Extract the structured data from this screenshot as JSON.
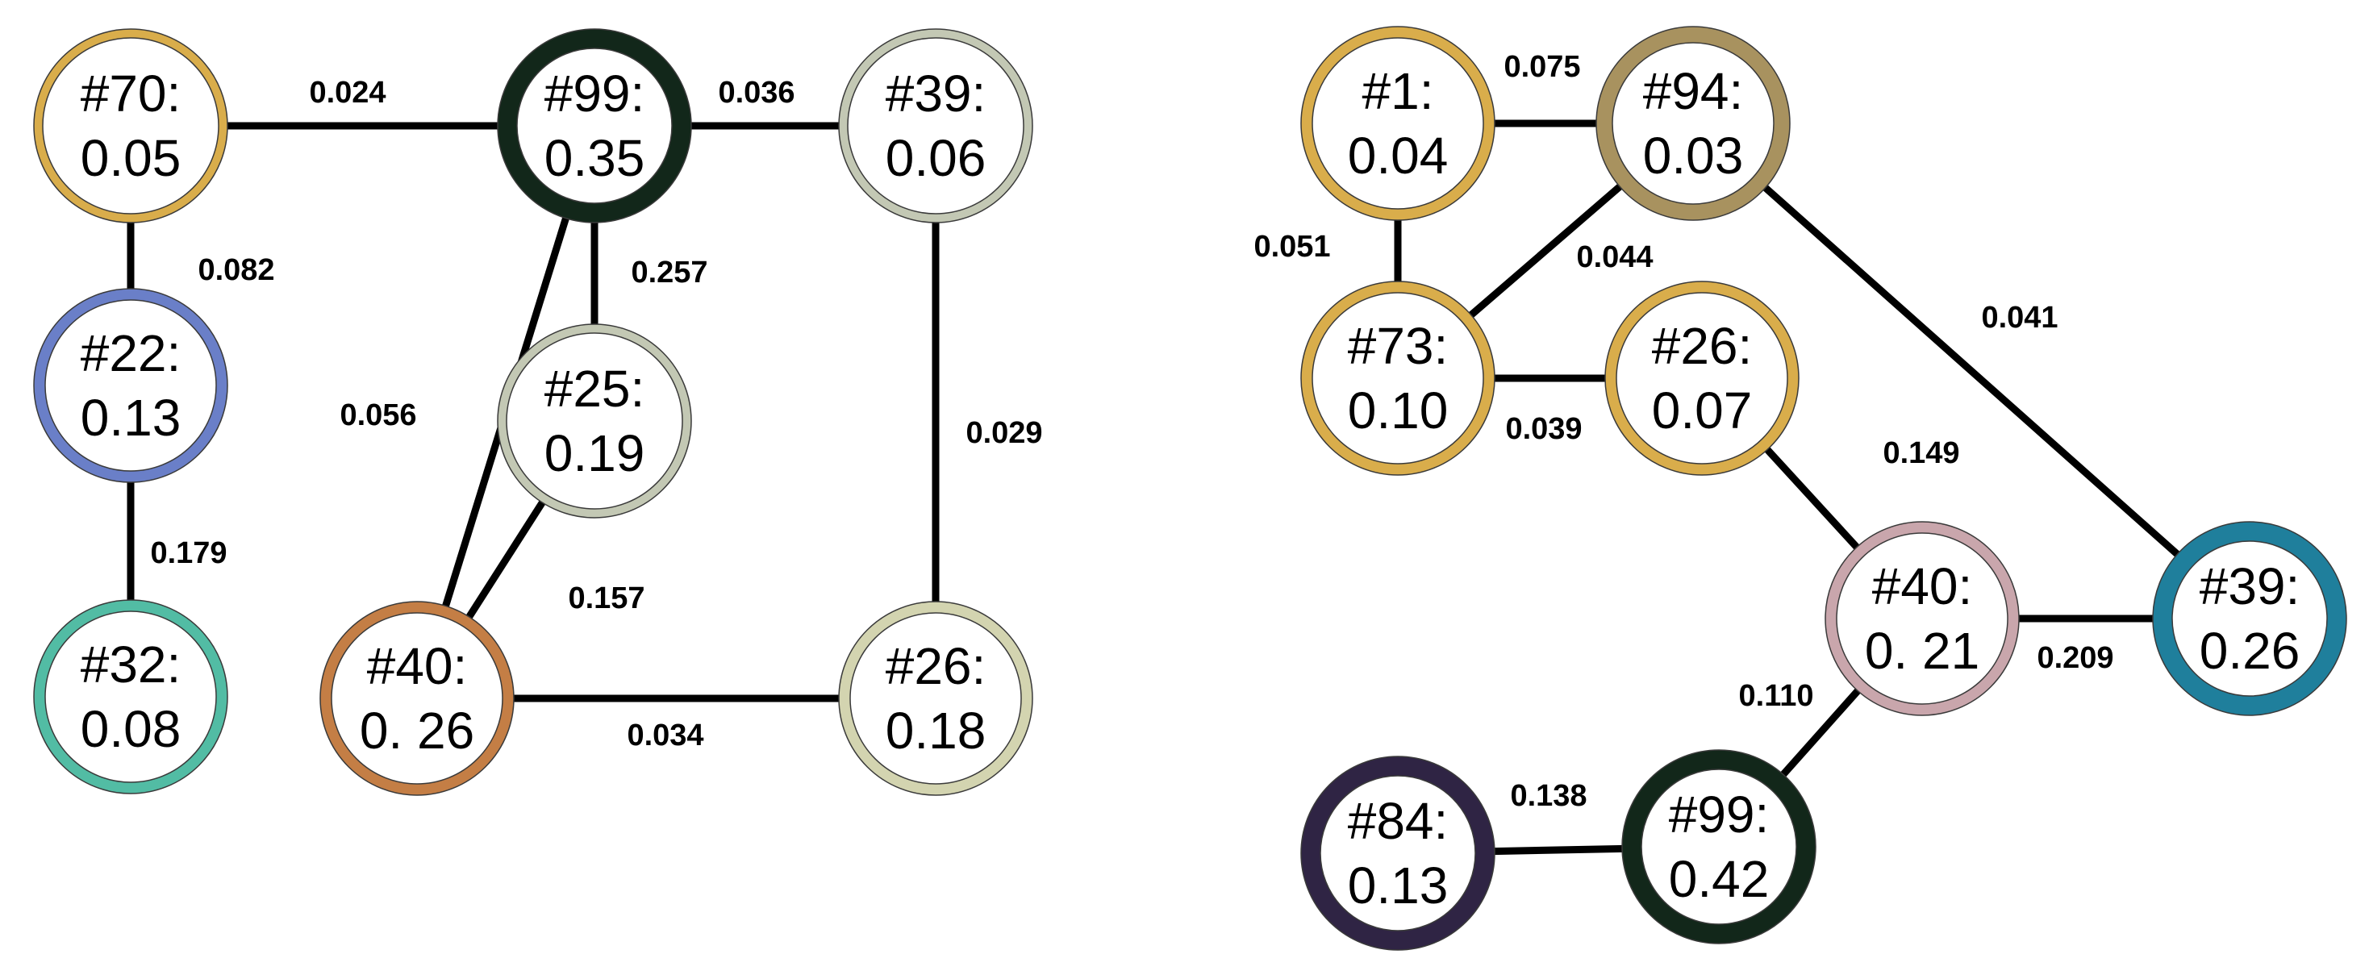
{
  "graphs": [
    {
      "nodes": [
        {
          "id": "g1n70",
          "line1": "#70:",
          "line2": "0.05",
          "color": "#d9ad4b"
        },
        {
          "id": "g1n99",
          "line1": "#99:",
          "line2": "0.35",
          "color": "#12271a"
        },
        {
          "id": "g1n39",
          "line1": "#39:",
          "line2": "0.06",
          "color": "#c3c8b4"
        },
        {
          "id": "g1n22",
          "line1": "#22:",
          "line2": "0.13",
          "color": "#6a7fc8"
        },
        {
          "id": "g1n25",
          "line1": "#25:",
          "line2": "0.19",
          "color": "#c3c8b4"
        },
        {
          "id": "g1n32",
          "line1": "#32:",
          "line2": "0.08",
          "color": "#52bca4"
        },
        {
          "id": "g1n40",
          "line1": "#40:",
          "line2": "0. 26",
          "color": "#c47e45"
        },
        {
          "id": "g1n26",
          "line1": "#26:",
          "line2": "0.18",
          "color": "#d3d4b0"
        }
      ],
      "edges": [
        {
          "from": "g1n70",
          "to": "g1n99",
          "label": "0.024"
        },
        {
          "from": "g1n99",
          "to": "g1n39",
          "label": "0.036"
        },
        {
          "from": "g1n70",
          "to": "g1n22",
          "label": "0.082"
        },
        {
          "from": "g1n99",
          "to": "g1n25",
          "label": "0.257"
        },
        {
          "from": "g1n99",
          "to": "g1n40",
          "label": "0.056"
        },
        {
          "from": "g1n39",
          "to": "g1n26",
          "label": "0.029"
        },
        {
          "from": "g1n22",
          "to": "g1n32",
          "label": "0.179"
        },
        {
          "from": "g1n25",
          "to": "g1n40",
          "label": "0.157"
        },
        {
          "from": "g1n40",
          "to": "g1n26",
          "label": "0.034"
        }
      ]
    },
    {
      "nodes": [
        {
          "id": "g2n1",
          "line1": "#1:",
          "line2": "0.04",
          "color": "#d9ad4b"
        },
        {
          "id": "g2n94",
          "line1": "#94:",
          "line2": "0.03",
          "color": "#a8925f"
        },
        {
          "id": "g2n73",
          "line1": "#73:",
          "line2": "0.10",
          "color": "#d9ad4b"
        },
        {
          "id": "g2n26",
          "line1": "#26:",
          "line2": "0.07",
          "color": "#d9ad4b"
        },
        {
          "id": "g2n40",
          "line1": "#40:",
          "line2": "0. 21",
          "color": "#c9a6ac"
        },
        {
          "id": "g2n39",
          "line1": "#39:",
          "line2": "0.26",
          "color": "#1f7f9c"
        },
        {
          "id": "g2n84",
          "line1": "#84:",
          "line2": "0.13",
          "color": "#2f2444"
        },
        {
          "id": "g2n99",
          "line1": "#99:",
          "line2": "0.42",
          "color": "#12271a"
        }
      ],
      "edges": [
        {
          "from": "g2n1",
          "to": "g2n94",
          "label": "0.075"
        },
        {
          "from": "g2n1",
          "to": "g2n73",
          "label": "0.051"
        },
        {
          "from": "g2n94",
          "to": "g2n73",
          "label": "0.044"
        },
        {
          "from": "g2n94",
          "to": "g2n39",
          "label": "0.041"
        },
        {
          "from": "g2n73",
          "to": "g2n26",
          "label": "0.039"
        },
        {
          "from": "g2n26",
          "to": "g2n40",
          "label": "0.149"
        },
        {
          "from": "g2n40",
          "to": "g2n39",
          "label": "0.209"
        },
        {
          "from": "g2n40",
          "to": "g2n99",
          "label": "0.110"
        },
        {
          "from": "g2n84",
          "to": "g2n99",
          "label": "0.138"
        }
      ]
    }
  ]
}
